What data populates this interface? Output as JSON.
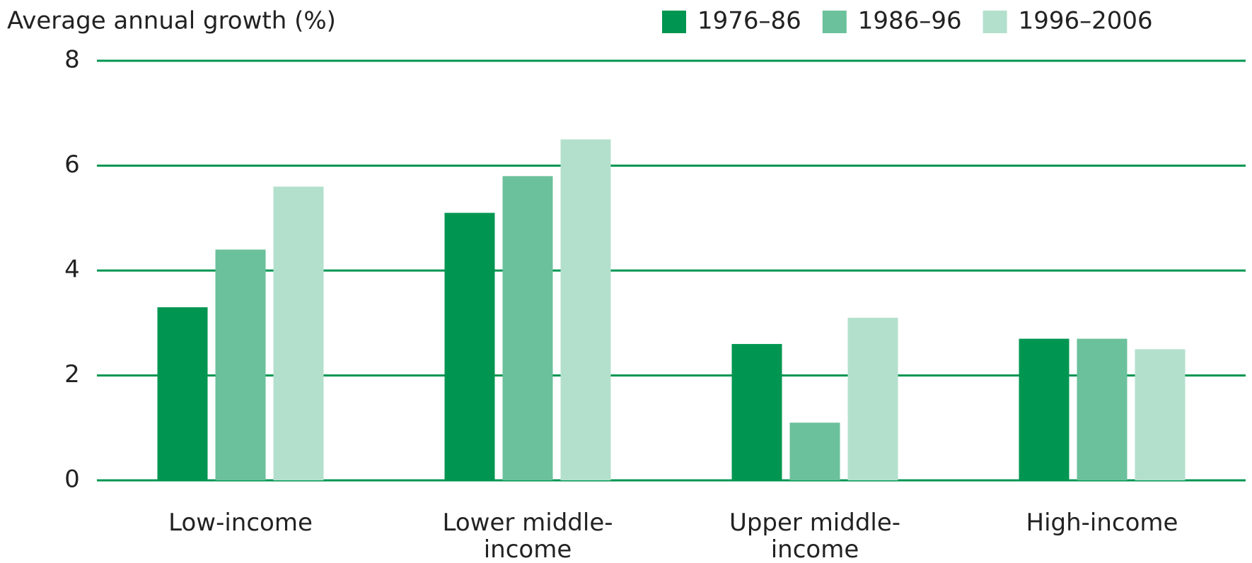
{
  "chart_data": {
    "type": "bar",
    "y_label": "Average annual growth (%)",
    "categories": [
      "Low-income",
      "Lower middle-income",
      "Upper middle-income",
      "High-income"
    ],
    "series": [
      {
        "name": "1976–86",
        "color": "#009651",
        "values": [
          3.3,
          5.1,
          2.6,
          2.7
        ]
      },
      {
        "name": "1986–96",
        "color": "#6bc19b",
        "values": [
          4.4,
          5.8,
          1.1,
          2.7
        ]
      },
      {
        "name": "1996–2006",
        "color": "#b3e0cc",
        "values": [
          5.6,
          6.5,
          3.1,
          2.5
        ]
      }
    ],
    "ylim": [
      0,
      8
    ],
    "yticks": [
      0,
      2,
      4,
      6,
      8
    ],
    "grid": true,
    "grid_color": "#009651",
    "legend": "top-right"
  }
}
